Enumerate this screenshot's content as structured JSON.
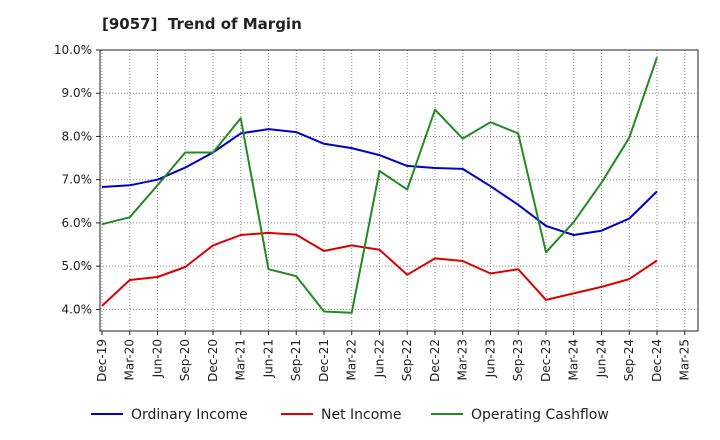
{
  "title": "[9057]  Trend of Margin",
  "chart_data": {
    "type": "line",
    "title": "[9057]  Trend of Margin",
    "xlabel": "",
    "ylabel": "",
    "categories": [
      "Dec-19",
      "Mar-20",
      "Jun-20",
      "Sep-20",
      "Dec-20",
      "Mar-21",
      "Jun-21",
      "Sep-21",
      "Dec-21",
      "Mar-22",
      "Jun-22",
      "Sep-22",
      "Dec-22",
      "Mar-23",
      "Jun-23",
      "Sep-23",
      "Dec-23",
      "Mar-24",
      "Jun-24",
      "Sep-24",
      "Dec-24",
      "Mar-25"
    ],
    "y_ticks": [
      "4.0%",
      "5.0%",
      "6.0%",
      "7.0%",
      "8.0%",
      "9.0%",
      "10.0%"
    ],
    "ylim": [
      3.5,
      10.0
    ],
    "grid": true,
    "legend_position": "bottom",
    "series": [
      {
        "name": "Ordinary Income",
        "color": "#0000cc",
        "values": [
          6.83,
          6.87,
          7.0,
          7.28,
          7.63,
          8.07,
          8.17,
          8.1,
          7.83,
          7.73,
          7.57,
          7.32,
          7.27,
          7.25,
          6.85,
          6.42,
          5.93,
          5.72,
          5.82,
          6.1,
          6.73,
          null
        ]
      },
      {
        "name": "Net Income",
        "color": "#dd0000",
        "values": [
          4.08,
          4.68,
          4.75,
          4.98,
          5.48,
          5.72,
          5.77,
          5.73,
          5.35,
          5.48,
          5.38,
          4.8,
          5.18,
          5.12,
          4.83,
          4.93,
          4.22,
          4.37,
          4.52,
          4.7,
          5.13,
          null
        ]
      },
      {
        "name": "Operating Cashflow",
        "color": "#228b22",
        "values": [
          5.97,
          6.13,
          6.87,
          7.63,
          7.63,
          8.42,
          4.93,
          4.77,
          3.95,
          3.92,
          7.2,
          6.77,
          8.62,
          7.95,
          8.33,
          8.07,
          5.32,
          6.02,
          6.93,
          7.97,
          9.83,
          null
        ]
      }
    ]
  }
}
